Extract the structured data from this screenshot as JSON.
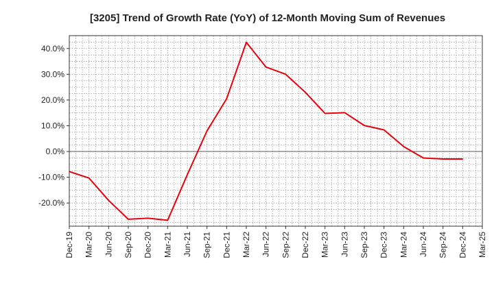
{
  "chart_data": {
    "type": "line",
    "title": "[3205]  Trend of Growth Rate (YoY) of 12-Month Moving Sum of Revenues",
    "xlabel": "",
    "ylabel": "",
    "ylim": [
      -29,
      45
    ],
    "y_ticks": [
      -20,
      -10,
      0,
      10,
      20,
      30,
      40
    ],
    "y_tick_labels": [
      "-20.0%",
      "-10.0%",
      "0.0%",
      "10.0%",
      "20.0%",
      "30.0%",
      "40.0%"
    ],
    "x_tick_labels": [
      "Dec-19",
      "Mar-20",
      "Jun-20",
      "Sep-20",
      "Dec-20",
      "Mar-21",
      "Jun-21",
      "Sep-21",
      "Dec-21",
      "Mar-22",
      "Jun-22",
      "Sep-22",
      "Dec-22",
      "Mar-23",
      "Jun-23",
      "Sep-23",
      "Dec-23",
      "Mar-24",
      "Jun-24",
      "Sep-24",
      "Dec-24",
      "Mar-25"
    ],
    "grid": true,
    "legend": "none",
    "series": [
      {
        "color": "#e8000b",
        "x": [
          "Dec-19",
          "Mar-20",
          "Jun-20",
          "Sep-20",
          "Dec-20",
          "Mar-21",
          "Jun-21",
          "Sep-21",
          "Dec-21",
          "Mar-22",
          "Jun-22",
          "Sep-22",
          "Dec-22",
          "Mar-23",
          "Jun-23",
          "Sep-23",
          "Dec-23",
          "Mar-24",
          "Jun-24",
          "Sep-24",
          "Dec-24"
        ],
        "values": [
          -7.8,
          -10.3,
          -19.0,
          -26.3,
          -25.9,
          -26.7,
          -9.0,
          8.0,
          20.5,
          42.4,
          32.8,
          30.0,
          23.0,
          14.8,
          15.1,
          10.1,
          8.4,
          1.9,
          -2.5,
          -2.9,
          -2.9
        ]
      }
    ]
  }
}
